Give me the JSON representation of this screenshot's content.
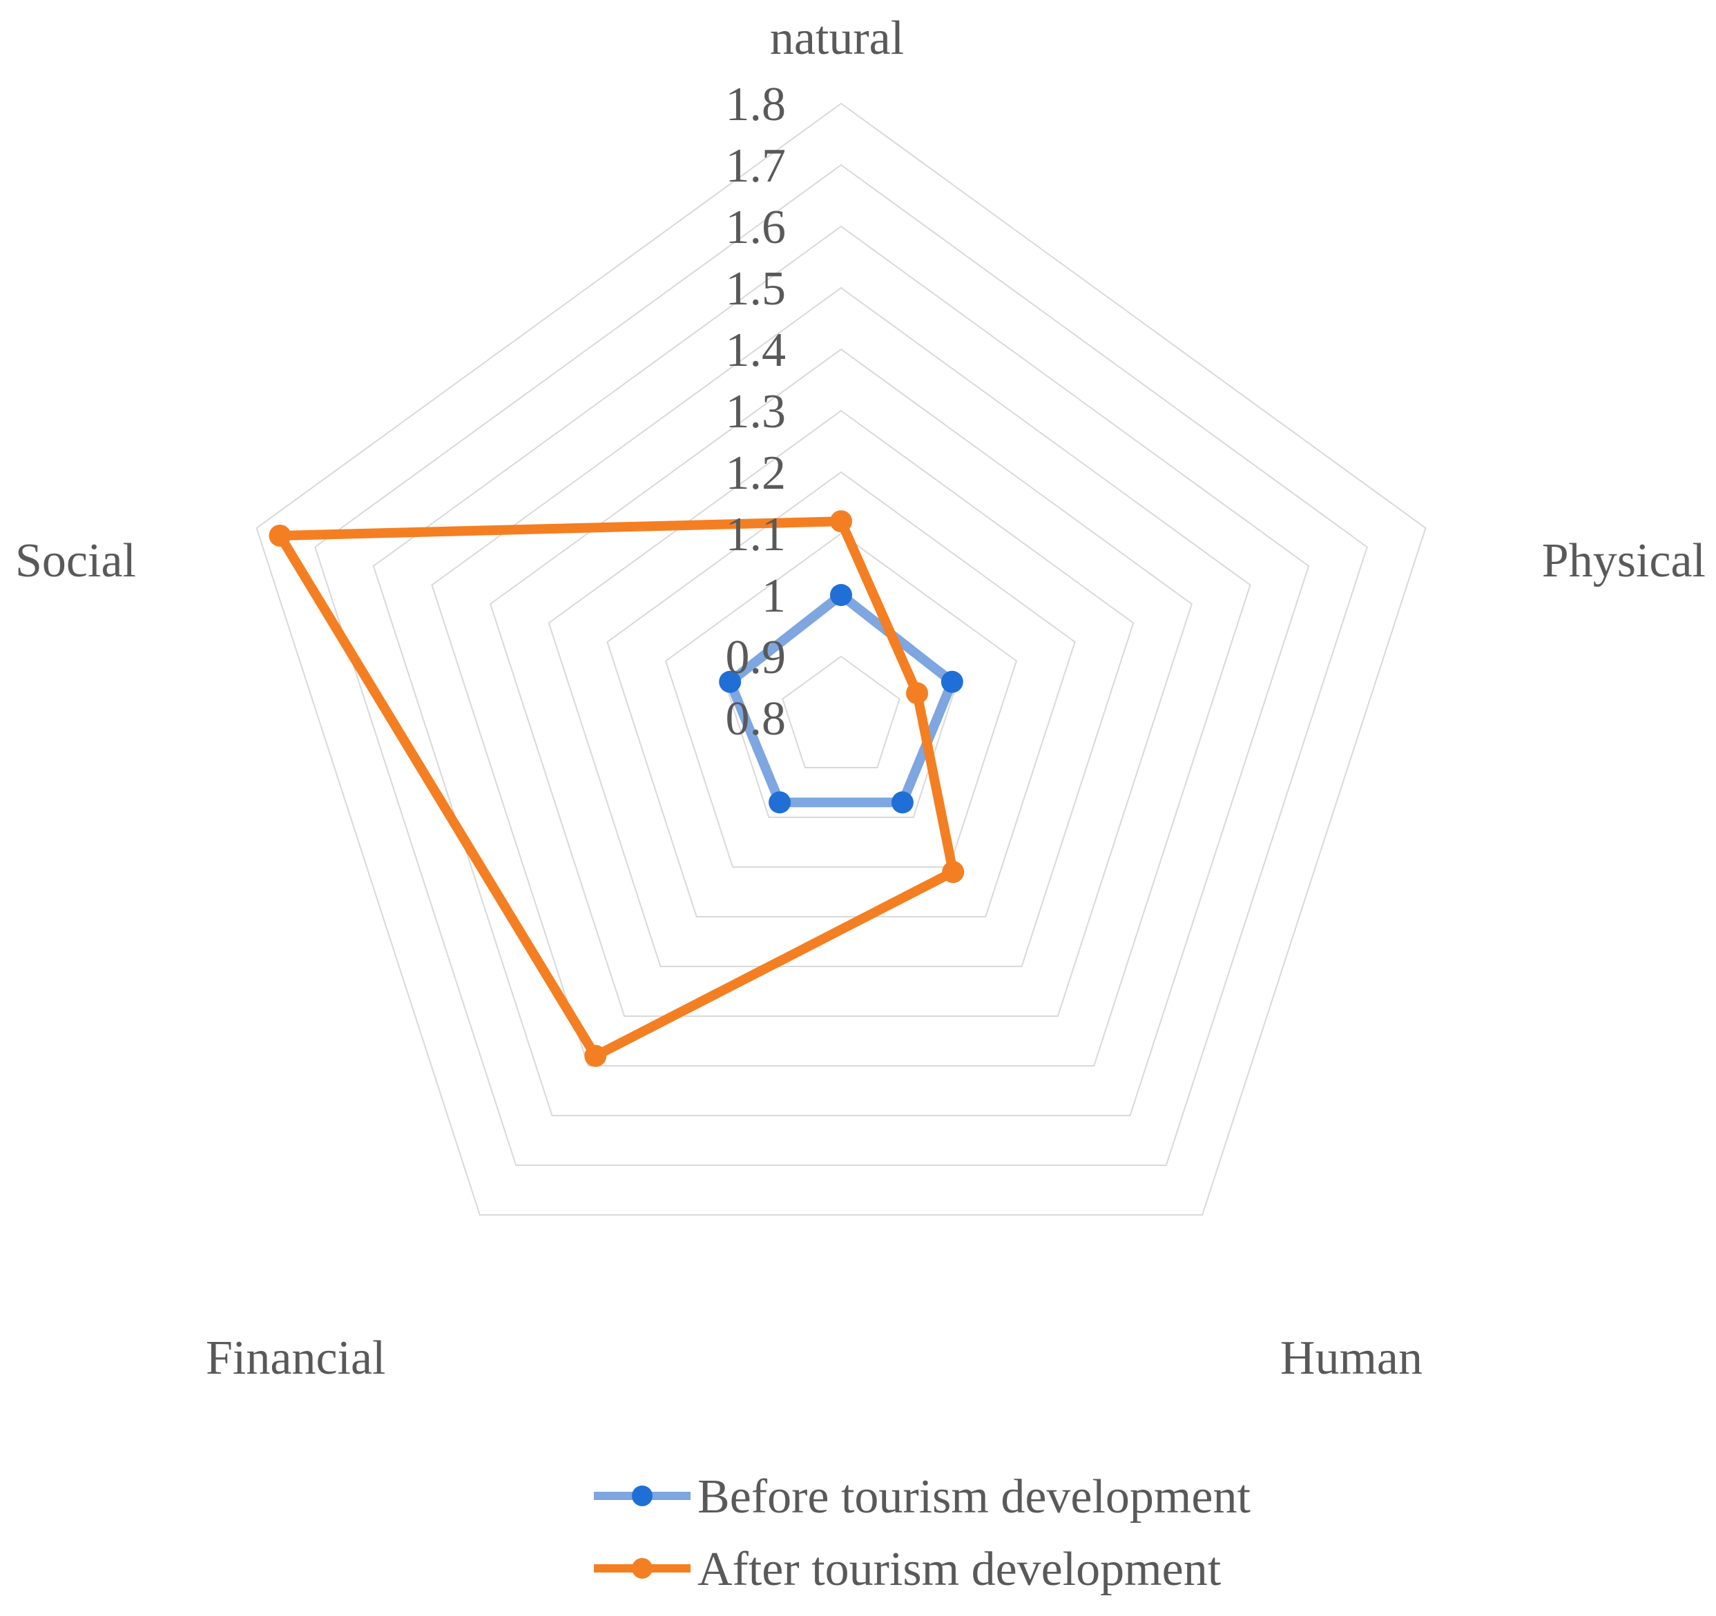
{
  "chart_data": {
    "type": "radar",
    "categories": [
      "natural",
      "Physical",
      "Human",
      "Financial",
      "Social"
    ],
    "rlim": [
      0.8,
      1.8
    ],
    "ticks": [
      "0.8",
      "0.9",
      "1",
      "1.1",
      "1.2",
      "1.3",
      "1.4",
      "1.5",
      "1.6",
      "1.7",
      "1.8"
    ],
    "grid": true,
    "legend_position": "bottom",
    "series": [
      {
        "name": "Before tourism development",
        "values": [
          1.0,
          0.99,
          0.97,
          0.97,
          0.99
        ],
        "line_color": "#7ea6e0",
        "marker_color": "#1f6fd6"
      },
      {
        "name": "After tourism development",
        "values": [
          1.12,
          0.93,
          1.11,
          1.48,
          1.76
        ],
        "line_color": "#f47f22",
        "marker_color": "#f47f22"
      }
    ]
  }
}
